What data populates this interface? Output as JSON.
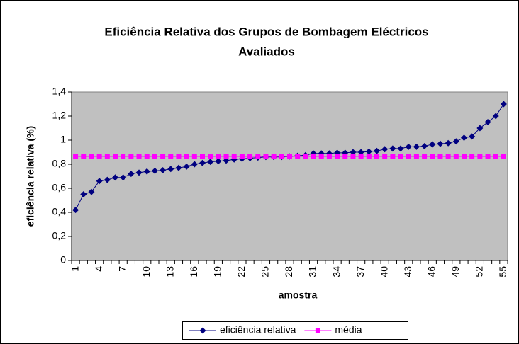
{
  "chart_data": {
    "type": "line",
    "title": [
      "Eficiência Relativa dos Grupos de Bombagem Eléctricos",
      "Avaliados"
    ],
    "x_label": "amostra",
    "y_label": "eficiência relativa (%)",
    "categories": [
      1,
      null,
      null,
      4,
      null,
      null,
      7,
      null,
      null,
      10,
      null,
      null,
      13,
      null,
      null,
      16,
      null,
      null,
      19,
      null,
      null,
      22,
      null,
      null,
      25,
      null,
      null,
      28,
      null,
      null,
      31,
      null,
      null,
      34,
      null,
      null,
      37,
      null,
      null,
      40,
      null,
      null,
      43,
      null,
      null,
      46,
      null,
      null,
      49,
      null,
      null,
      52,
      null,
      null,
      55
    ],
    "series": [
      {
        "name": "eficiência relativa",
        "color": "#000080",
        "marker": "diamond",
        "values": [
          0.42,
          0.55,
          0.57,
          0.66,
          0.67,
          0.69,
          0.69,
          0.72,
          0.73,
          0.74,
          0.745,
          0.75,
          0.76,
          0.77,
          0.78,
          0.8,
          0.81,
          0.82,
          0.825,
          0.83,
          0.84,
          0.845,
          0.85,
          0.855,
          0.86,
          0.86,
          0.86,
          0.865,
          0.87,
          0.875,
          0.89,
          0.89,
          0.89,
          0.895,
          0.895,
          0.9,
          0.9,
          0.905,
          0.91,
          0.925,
          0.93,
          0.93,
          0.945,
          0.945,
          0.95,
          0.965,
          0.97,
          0.975,
          0.99,
          1.02,
          1.03,
          1.1,
          1.15,
          1.2,
          1.3
        ]
      },
      {
        "name": "média",
        "color": "#ff00ff",
        "marker": "square",
        "values": [
          0.865,
          0.865,
          0.865,
          0.865,
          0.865,
          0.865,
          0.865,
          0.865,
          0.865,
          0.865,
          0.865,
          0.865,
          0.865,
          0.865,
          0.865,
          0.865,
          0.865,
          0.865,
          0.865,
          0.865,
          0.865,
          0.865,
          0.865,
          0.865,
          0.865,
          0.865,
          0.865,
          0.865,
          0.865,
          0.865,
          0.865,
          0.865,
          0.865,
          0.865,
          0.865,
          0.865,
          0.865,
          0.865,
          0.865,
          0.865,
          0.865,
          0.865,
          0.865,
          0.865,
          0.865,
          0.865,
          0.865,
          0.865,
          0.865,
          0.865,
          0.865,
          0.865,
          0.865,
          0.865,
          0.865
        ]
      }
    ],
    "ylim": [
      0,
      1.4
    ],
    "yticks": [
      0,
      {
        "value": 0.2,
        "label": "0,2"
      },
      {
        "value": 0.4,
        "label": "0,4"
      },
      {
        "value": 0.6,
        "label": "0,6"
      },
      {
        "value": 0.8,
        "label": "0,8"
      },
      1,
      {
        "value": 1.2,
        "label": "1,2"
      },
      {
        "value": 1.4,
        "label": "1,4"
      }
    ],
    "grid": false,
    "legend": "bottom",
    "plot_background": "#c0c0c0"
  }
}
